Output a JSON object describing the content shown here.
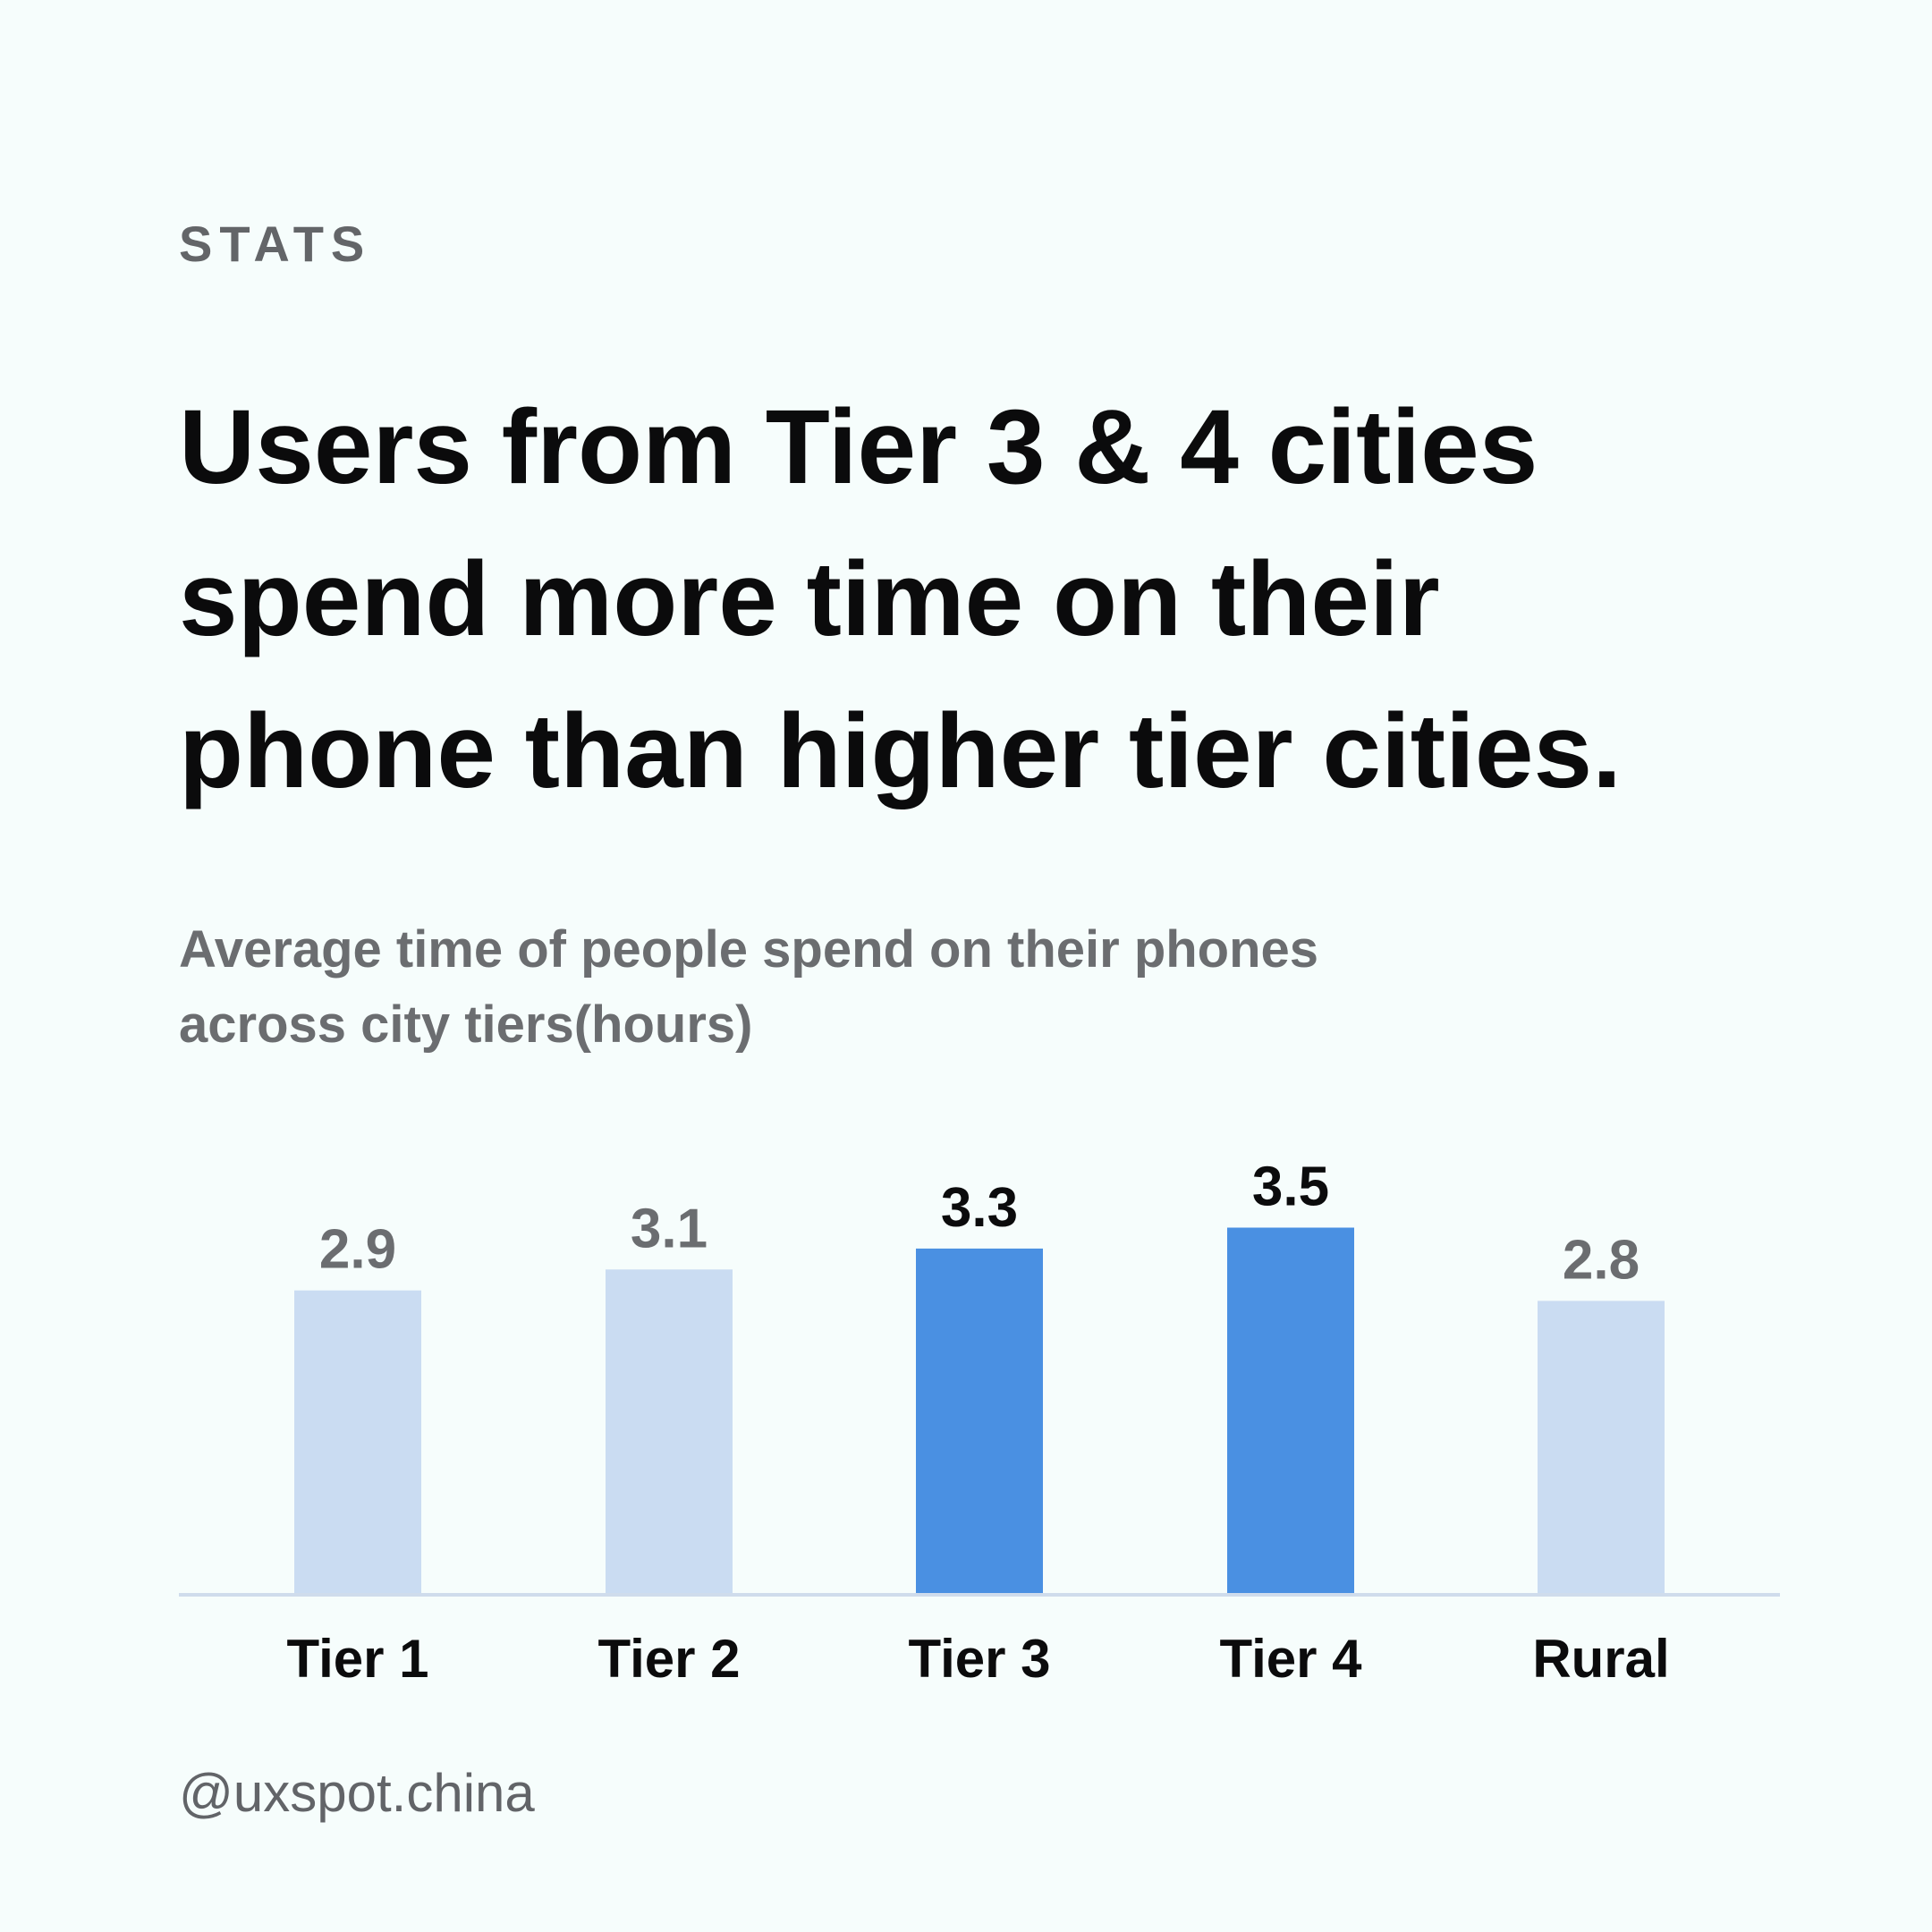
{
  "eyebrow": "STATS",
  "headline": "Users from Tier 3 & 4 cities\nspend  more time on their\nphone than higher tier cities.",
  "credit": "@uxspot.china",
  "colors": {
    "highlight": "#4a90e2",
    "muted": "#cadcf2",
    "axis": "#cfdcec",
    "label_dark": "#0b0b0c",
    "label_muted": "#6b6d70"
  },
  "chart_data": {
    "type": "bar",
    "title": "Average time of people spend on their phones\nacross city tiers(hours)",
    "categories": [
      "Tier 1",
      "Tier 2",
      "Tier 3",
      "Tier 4",
      "Rural"
    ],
    "values": [
      2.9,
      3.1,
      3.3,
      3.5,
      2.8
    ],
    "highlighted": [
      false,
      false,
      true,
      true,
      false
    ],
    "unit": "hours",
    "grid": false,
    "legend": "none"
  }
}
